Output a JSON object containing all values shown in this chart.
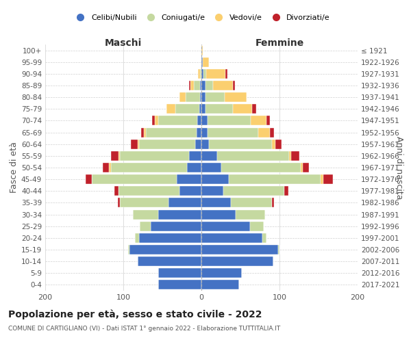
{
  "age_groups": [
    "0-4",
    "5-9",
    "10-14",
    "15-19",
    "20-24",
    "25-29",
    "30-34",
    "35-39",
    "40-44",
    "45-49",
    "50-54",
    "55-59",
    "60-64",
    "65-69",
    "70-74",
    "75-79",
    "80-84",
    "85-89",
    "90-94",
    "95-99",
    "100+"
  ],
  "birth_years": [
    "2017-2021",
    "2012-2016",
    "2007-2011",
    "2002-2006",
    "1997-2001",
    "1992-1996",
    "1987-1991",
    "1982-1986",
    "1977-1981",
    "1972-1976",
    "1967-1971",
    "1962-1966",
    "1957-1961",
    "1952-1956",
    "1947-1951",
    "1942-1946",
    "1937-1941",
    "1932-1936",
    "1927-1931",
    "1922-1926",
    "≤ 1921"
  ],
  "male_celibe": [
    55,
    55,
    82,
    92,
    80,
    65,
    55,
    42,
    28,
    32,
    18,
    16,
    8,
    6,
    5,
    3,
    2,
    2,
    0,
    0,
    0
  ],
  "male_coniugato": [
    0,
    0,
    0,
    2,
    5,
    14,
    33,
    62,
    78,
    108,
    98,
    88,
    72,
    65,
    50,
    30,
    18,
    8,
    2,
    0,
    0
  ],
  "male_vedovo": [
    0,
    0,
    0,
    0,
    0,
    0,
    0,
    0,
    0,
    0,
    2,
    2,
    2,
    3,
    5,
    12,
    8,
    4,
    2,
    0,
    0
  ],
  "male_divorziato": [
    0,
    0,
    0,
    0,
    0,
    0,
    0,
    3,
    5,
    8,
    8,
    10,
    8,
    3,
    3,
    0,
    0,
    2,
    0,
    0,
    0
  ],
  "female_celibe": [
    48,
    52,
    92,
    98,
    78,
    62,
    44,
    38,
    28,
    35,
    25,
    20,
    10,
    8,
    8,
    5,
    5,
    5,
    3,
    2,
    0
  ],
  "female_coniugato": [
    0,
    0,
    0,
    2,
    5,
    18,
    38,
    52,
    78,
    118,
    102,
    92,
    80,
    65,
    55,
    35,
    25,
    10,
    3,
    0,
    0
  ],
  "female_vedovo": [
    0,
    0,
    0,
    0,
    0,
    0,
    0,
    0,
    0,
    3,
    3,
    3,
    5,
    15,
    20,
    25,
    28,
    25,
    25,
    8,
    2
  ],
  "female_divorziato": [
    0,
    0,
    0,
    0,
    0,
    0,
    0,
    3,
    5,
    12,
    8,
    10,
    8,
    5,
    5,
    5,
    0,
    3,
    2,
    0,
    0
  ],
  "color_celibe": "#4472C4",
  "color_coniugato": "#C5D9A0",
  "color_vedovo": "#FBCF6F",
  "color_divorziato": "#C0212B",
  "title": "Popolazione per età, sesso e stato civile - 2022",
  "subtitle": "COMUNE DI CARTIGLIANO (VI) - Dati ISTAT 1° gennaio 2022 - Elaborazione TUTTITALIA.IT",
  "label_maschi": "Maschi",
  "label_femmine": "Femmine",
  "ylabel_left": "Fasce di età",
  "ylabel_right": "Anni di nascita",
  "xlim": 200,
  "bg": "#ffffff",
  "grid_color": "#d0d0d0",
  "legend_labels": [
    "Celibi/Nubili",
    "Coniugati/e",
    "Vedovi/e",
    "Divorziati/e"
  ]
}
